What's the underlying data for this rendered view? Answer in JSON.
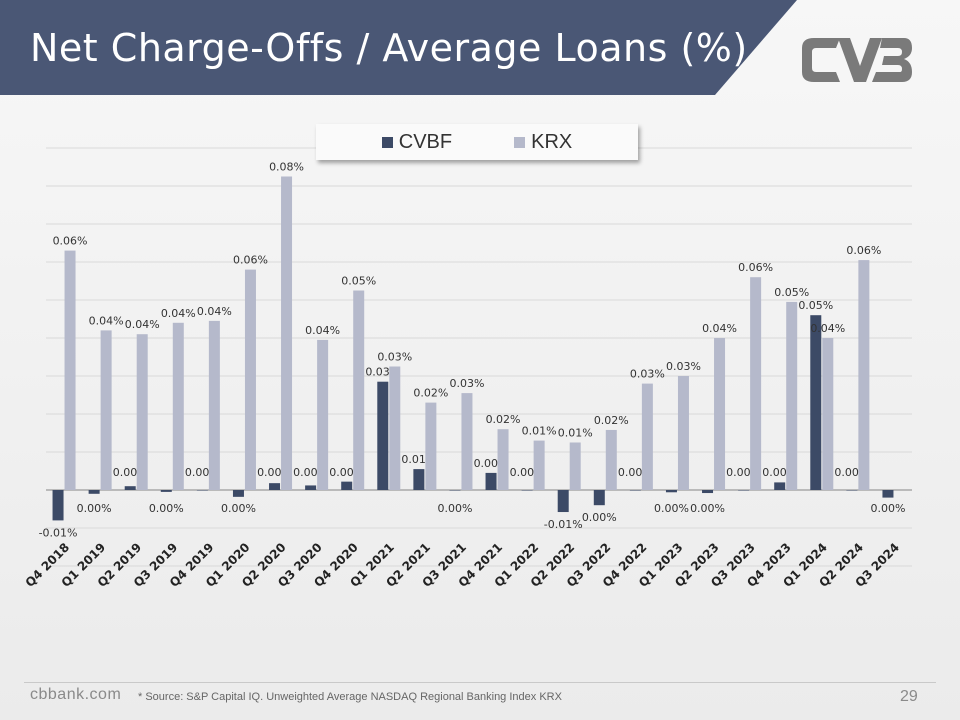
{
  "header": {
    "title": "Net Charge-Offs / Average Loans (%)"
  },
  "footer": {
    "site": "cbbank.com",
    "source": "* Source: S&P Capital IQ. Unweighted Average NASDAQ Regional Banking Index KRX",
    "page_number": "29"
  },
  "colors": {
    "header_bg": "#4a5775",
    "cvbf": "#3c4a66",
    "krx": "#b5b9cb",
    "grid": "#d9d9d9"
  },
  "logo_icon": "cvb-logo-icon",
  "chart_data": {
    "type": "bar",
    "title": "",
    "xlabel": "",
    "ylabel": "",
    "legend_position": "top-center",
    "grid": true,
    "ylim": [
      -0.02,
      0.09
    ],
    "categories": [
      "Q4 2018",
      "Q1 2019",
      "Q2 2019",
      "Q3 2019",
      "Q4 2019",
      "Q1 2020",
      "Q2 2020",
      "Q3 2020",
      "Q4 2020",
      "Q1 2021",
      "Q2 2021",
      "Q3 2021",
      "Q4 2021",
      "Q1 2022",
      "Q2 2022",
      "Q3 2022",
      "Q4 2022",
      "Q1 2023",
      "Q2 2023",
      "Q3 2023",
      "Q4 2023",
      "Q1 2024",
      "Q2 2024",
      "Q3 2024"
    ],
    "series": [
      {
        "name": "CVBF",
        "values": [
          -0.008,
          -0.001,
          0.001,
          -0.0005,
          0,
          -0.0018,
          0.0018,
          0.0012,
          0.0022,
          0.0285,
          0.0055,
          -0.0001,
          0.0045,
          0,
          -0.0058,
          -0.004,
          0,
          -0.0006,
          -0.0008,
          0,
          0.002,
          0.046,
          0,
          -0.002
        ],
        "labels": [
          "-0.01%",
          "0.00%",
          "0.00%",
          "0.00%",
          "0.00%",
          "0.00%",
          "0.00%",
          "0.00%",
          "0.00%",
          "0.03%",
          "0.01%",
          "0.00%",
          "0.00%",
          "0.00%",
          "-0.01%",
          "0.00%",
          "0.00%",
          "0.00%",
          "0.00%",
          "0.00%",
          "0.00%",
          "0.05%",
          "0.00%",
          "0.00%"
        ]
      },
      {
        "name": "KRX",
        "values": [
          0.063,
          0.042,
          0.041,
          0.044,
          0.0445,
          0.058,
          0.0825,
          0.0395,
          0.0525,
          0.0325,
          0.023,
          0.0255,
          0.016,
          0.013,
          0.0125,
          0.0158,
          0.028,
          0.03,
          0.04,
          0.056,
          0.0495,
          0.04,
          0.0605,
          null
        ],
        "labels": [
          "0.06%",
          "0.04%",
          "0.04%",
          "0.04%",
          "0.04%",
          "0.06%",
          "0.08%",
          "0.04%",
          "0.05%",
          "0.03%",
          "0.02%",
          "0.03%",
          "0.02%",
          "0.01%",
          "0.01%",
          "0.02%",
          "0.03%",
          "0.03%",
          "0.04%",
          "0.06%",
          "0.05%",
          "0.04%",
          "0.06%",
          ""
        ]
      }
    ]
  }
}
